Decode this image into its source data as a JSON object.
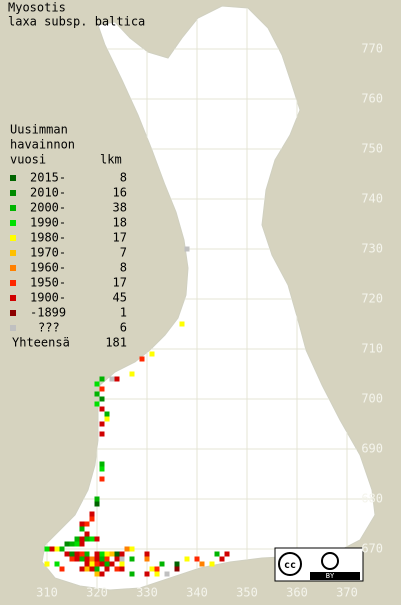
{
  "title": [
    "Myosotis",
    "laxa subsp. baltica"
  ],
  "legend": {
    "heading": [
      "Uusimman",
      "havainnon",
      "vuosi"
    ],
    "count_heading": "lkm",
    "entries": [
      {
        "label": "2015-",
        "color": "#006400",
        "count": 8
      },
      {
        "label": "2010-",
        "color": "#008a00",
        "count": 16
      },
      {
        "label": "2000-",
        "color": "#00b400",
        "count": 38
      },
      {
        "label": "1990-",
        "color": "#00e000",
        "count": 18
      },
      {
        "label": "1980-",
        "color": "#ffff00",
        "count": 17
      },
      {
        "label": "1970-",
        "color": "#ffc000",
        "count": 7
      },
      {
        "label": "1960-",
        "color": "#ff8000",
        "count": 8
      },
      {
        "label": "1950-",
        "color": "#ff2800",
        "count": 17
      },
      {
        "label": "1900-",
        "color": "#d00000",
        "count": 45
      },
      {
        "label": "-1899",
        "color": "#8c0000",
        "count": 1
      },
      {
        "label": "???",
        "color": "#c0c0c0",
        "count": 6
      }
    ],
    "total_label": "Yhteensä",
    "total": 181
  },
  "grid": {
    "easting_ticks": [
      310,
      320,
      330,
      340,
      350,
      360,
      370
    ],
    "northing_ticks": [
      670,
      680,
      690,
      700,
      710,
      720,
      730,
      740,
      750,
      760,
      770
    ]
  },
  "squares": [
    [
      338,
      730,
      10
    ],
    [
      337,
      715,
      4
    ],
    [
      331,
      709,
      4
    ],
    [
      329,
      708,
      7
    ],
    [
      327,
      705,
      4
    ],
    [
      324,
      704,
      8
    ],
    [
      323,
      704,
      10
    ],
    [
      321,
      704,
      2
    ],
    [
      320,
      703,
      3
    ],
    [
      321,
      702,
      7
    ],
    [
      320,
      701,
      2
    ],
    [
      321,
      700,
      1
    ],
    [
      320,
      699,
      3
    ],
    [
      321,
      698,
      8
    ],
    [
      322,
      697,
      2
    ],
    [
      322,
      696,
      4
    ],
    [
      321,
      695,
      8
    ],
    [
      321,
      693,
      8
    ],
    [
      321,
      687,
      2
    ],
    [
      321,
      686,
      3
    ],
    [
      321,
      684,
      7
    ],
    [
      320,
      680,
      2
    ],
    [
      320,
      679,
      0
    ],
    [
      319,
      677,
      8
    ],
    [
      319,
      676,
      7
    ],
    [
      317,
      675,
      8
    ],
    [
      318,
      675,
      7
    ],
    [
      317,
      674,
      2
    ],
    [
      318,
      673,
      8
    ],
    [
      316,
      672,
      2
    ],
    [
      317,
      672,
      8
    ],
    [
      318,
      672,
      2
    ],
    [
      319,
      672,
      3
    ],
    [
      320,
      672,
      8
    ],
    [
      314,
      671,
      1
    ],
    [
      315,
      671,
      2
    ],
    [
      316,
      671,
      3
    ],
    [
      317,
      671,
      8
    ],
    [
      313,
      670,
      2
    ],
    [
      312,
      670,
      4
    ],
    [
      311,
      670,
      8
    ],
    [
      310,
      670,
      3
    ],
    [
      314,
      669,
      8
    ],
    [
      315,
      669,
      1
    ],
    [
      316,
      669,
      8
    ],
    [
      317,
      669,
      7
    ],
    [
      318,
      669,
      2
    ],
    [
      320,
      669,
      8
    ],
    [
      321,
      669,
      3
    ],
    [
      322,
      669,
      4
    ],
    [
      323,
      669,
      5
    ],
    [
      324,
      669,
      0
    ],
    [
      325,
      669,
      8
    ],
    [
      326,
      670,
      6
    ],
    [
      327,
      670,
      4
    ],
    [
      315,
      668,
      7
    ],
    [
      316,
      668,
      8
    ],
    [
      317,
      668,
      2
    ],
    [
      318,
      668,
      8
    ],
    [
      319,
      668,
      6
    ],
    [
      320,
      668,
      8
    ],
    [
      321,
      668,
      2
    ],
    [
      322,
      668,
      7
    ],
    [
      324,
      668,
      8
    ],
    [
      325,
      668,
      10
    ],
    [
      327,
      668,
      2
    ],
    [
      318,
      667,
      8
    ],
    [
      319,
      667,
      4
    ],
    [
      320,
      667,
      7
    ],
    [
      321,
      667,
      8
    ],
    [
      322,
      667,
      2
    ],
    [
      323,
      667,
      8
    ],
    [
      325,
      667,
      4
    ],
    [
      317,
      666,
      8
    ],
    [
      318,
      666,
      5
    ],
    [
      319,
      666,
      8
    ],
    [
      320,
      666,
      2
    ],
    [
      322,
      666,
      8
    ],
    [
      324,
      666,
      7
    ],
    [
      325,
      666,
      8
    ],
    [
      310,
      667,
      4
    ],
    [
      312,
      667,
      3
    ],
    [
      313,
      666,
      7
    ],
    [
      330,
      669,
      8
    ],
    [
      330,
      668,
      6
    ],
    [
      331,
      666,
      4
    ],
    [
      332,
      666,
      7
    ],
    [
      333,
      667,
      2
    ],
    [
      336,
      666,
      9
    ],
    [
      336,
      667,
      0
    ],
    [
      338,
      668,
      4
    ],
    [
      340,
      668,
      7
    ],
    [
      341,
      667,
      6
    ],
    [
      343,
      667,
      4
    ],
    [
      344,
      669,
      2
    ],
    [
      345,
      668,
      8
    ],
    [
      346,
      669,
      8
    ],
    [
      320,
      665,
      5
    ],
    [
      321,
      665,
      8
    ],
    [
      327,
      665,
      2
    ],
    [
      330,
      665,
      8
    ],
    [
      332,
      665,
      4
    ],
    [
      334,
      665,
      10
    ]
  ]
}
